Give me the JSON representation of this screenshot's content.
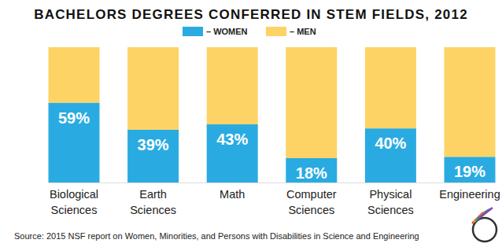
{
  "chart_data": {
    "type": "bar",
    "stacked": true,
    "title": "BACHELORS DEGREES CONFERRED IN STEM FIELDS, 2012",
    "categories": [
      "Biological Sciences",
      "Earth Sciences",
      "Math",
      "Computer Sciences",
      "Physical Sciences",
      "Engineering"
    ],
    "series": [
      {
        "name": "– WOMEN",
        "color": "#29abe2",
        "values": [
          59,
          39,
          43,
          18,
          40,
          19
        ],
        "value_labels": [
          "59%",
          "39%",
          "43%",
          "18%",
          "40%",
          "19%"
        ],
        "data_labels": true
      },
      {
        "name": "– MEN",
        "color": "#fdd365",
        "values": [
          41,
          61,
          57,
          82,
          60,
          81
        ]
      }
    ],
    "ylim": [
      0,
      100
    ],
    "tick_labels": "x",
    "legend": "top",
    "annotations": [
      "Source: 2015 NSF report on Women, Minorities, and Persons with Disabilities in Science and Engineering"
    ]
  }
}
